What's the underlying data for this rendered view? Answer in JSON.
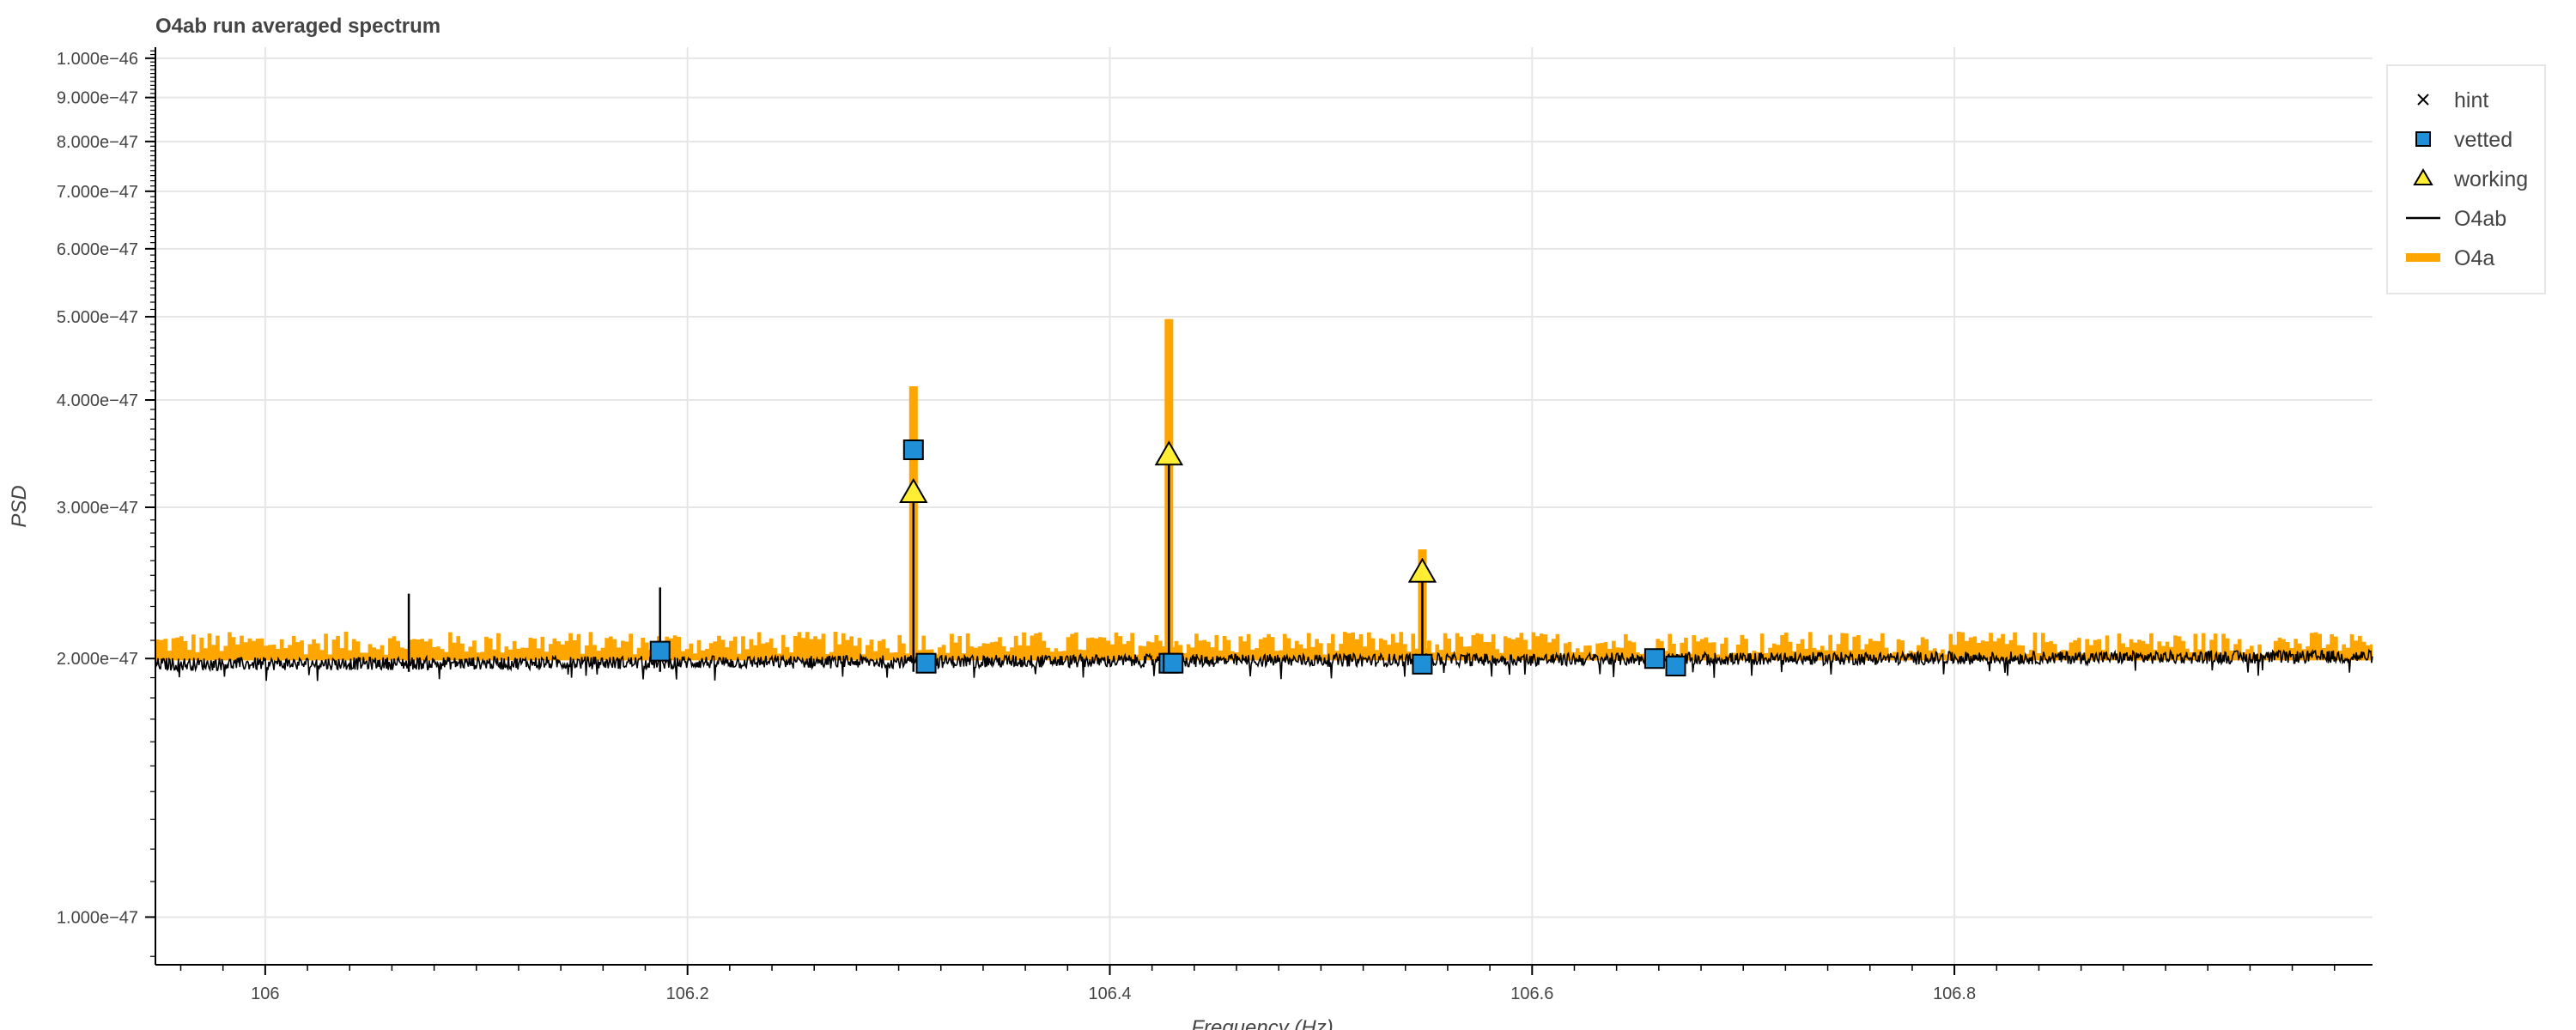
{
  "chart_data": {
    "type": "line",
    "title": "O4ab run averaged spectrum",
    "xlabel": "Frequency (Hz)",
    "ylabel": "PSD",
    "xlim": [
      105.948,
      106.998
    ],
    "ylim": [
      8.8e-48,
      1.03e-46
    ],
    "y_scale": "log",
    "grid": true,
    "legend_position": "top-right outside",
    "x_ticks": [
      106,
      106.2,
      106.4,
      106.6,
      106.8
    ],
    "x_tick_labels": [
      "106",
      "106.2",
      "106.4",
      "106.6",
      "106.8"
    ],
    "y_ticks": [
      1e-47,
      2e-47,
      3e-47,
      4e-47,
      5e-47,
      6e-47,
      7e-47,
      8e-47,
      9e-47,
      1e-46
    ],
    "y_tick_labels": [
      "1.000e−47",
      "2.000e−47",
      "3.000e−47",
      "4.000e−47",
      "5.000e−47",
      "6.000e−47",
      "7.000e−47",
      "8.000e−47",
      "9.000e−47",
      "1.000e−46"
    ],
    "legend": [
      {
        "label": "hint",
        "symbol": "x"
      },
      {
        "label": "vetted",
        "symbol": "square"
      },
      {
        "label": "working",
        "symbol": "triangle"
      },
      {
        "label": "O4ab",
        "symbol": "line"
      },
      {
        "label": "O4a",
        "symbol": "thick-line"
      }
    ],
    "series": [
      {
        "name": "O4a",
        "style": "step",
        "color": "#ffa500",
        "baseline_range": [
          2.02e-47,
          2.15e-47
        ],
        "peaks": [
          {
            "x": 106.307,
            "y": 4.15e-47
          },
          {
            "x": 106.428,
            "y": 4.97e-47
          },
          {
            "x": 106.548,
            "y": 2.68e-47
          }
        ]
      },
      {
        "name": "O4ab",
        "style": "line",
        "color": "#000000",
        "baseline": 1.97e-47,
        "baseline_end": 2.01e-47,
        "peaks": [
          {
            "x": 106.068,
            "y": 2.38e-47
          },
          {
            "x": 106.187,
            "y": 2.42e-47
          },
          {
            "x": 106.307,
            "y": 3.12e-47
          },
          {
            "x": 106.428,
            "y": 3.45e-47
          },
          {
            "x": 106.548,
            "y": 2.48e-47
          }
        ]
      },
      {
        "name": "vetted",
        "marker": "square",
        "color": "#1f8fd8",
        "points": [
          {
            "x": 106.187,
            "y": 2.04e-47
          },
          {
            "x": 106.307,
            "y": 3.5e-47
          },
          {
            "x": 106.313,
            "y": 1.975e-47
          },
          {
            "x": 106.428,
            "y": 1.975e-47
          },
          {
            "x": 106.43,
            "y": 1.975e-47
          },
          {
            "x": 106.548,
            "y": 1.97e-47
          },
          {
            "x": 106.658,
            "y": 2e-47
          },
          {
            "x": 106.668,
            "y": 1.96e-47
          }
        ]
      },
      {
        "name": "working",
        "marker": "triangle",
        "color": "#ffee33",
        "points": [
          {
            "x": 106.307,
            "y": 3.12e-47
          },
          {
            "x": 106.428,
            "y": 3.45e-47
          },
          {
            "x": 106.548,
            "y": 2.52e-47
          }
        ]
      },
      {
        "name": "hint",
        "marker": "x",
        "color": "#000000",
        "points": []
      }
    ]
  }
}
